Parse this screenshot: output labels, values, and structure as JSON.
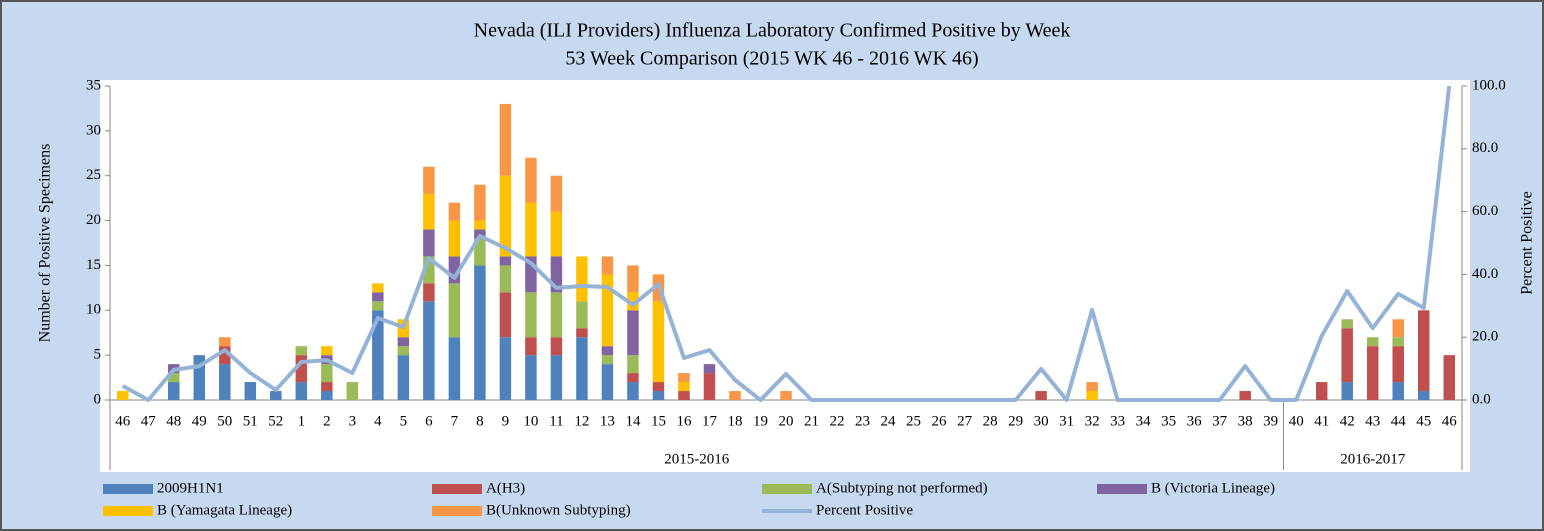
{
  "chart_data": {
    "type": "bar",
    "stacked": true,
    "title": "Nevada (ILI Providers) Influenza Laboratory Confirmed Positive by Week",
    "subtitle": "53 Week Comparison (2015 WK 46 - 2016 WK 46)",
    "y_label": "Number of Positive Specimens",
    "y2_label": "Percent Positive",
    "categories": [
      "46",
      "47",
      "48",
      "49",
      "50",
      "51",
      "52",
      "1",
      "2",
      "3",
      "4",
      "5",
      "6",
      "7",
      "8",
      "9",
      "10",
      "11",
      "12",
      "13",
      "14",
      "15",
      "16",
      "17",
      "18",
      "19",
      "20",
      "21",
      "22",
      "23",
      "24",
      "25",
      "26",
      "27",
      "28",
      "29",
      "30",
      "31",
      "32",
      "33",
      "34",
      "35",
      "36",
      "37",
      "38",
      "39",
      "40",
      "41",
      "42",
      "43",
      "44",
      "45",
      "46"
    ],
    "category_groups": [
      "2015-2016",
      "2015-2016",
      "2015-2016",
      "2015-2016",
      "2015-2016",
      "2015-2016",
      "2015-2016",
      "2015-2016",
      "2015-2016",
      "2015-2016",
      "2015-2016",
      "2015-2016",
      "2015-2016",
      "2015-2016",
      "2015-2016",
      "2015-2016",
      "2015-2016",
      "2015-2016",
      "2015-2016",
      "2015-2016",
      "2015-2016",
      "2015-2016",
      "2015-2016",
      "2015-2016",
      "2015-2016",
      "2015-2016",
      "2015-2016",
      "2015-2016",
      "2015-2016",
      "2015-2016",
      "2015-2016",
      "2015-2016",
      "2015-2016",
      "2015-2016",
      "2015-2016",
      "2015-2016",
      "2015-2016",
      "2015-2016",
      "2015-2016",
      "2015-2016",
      "2015-2016",
      "2015-2016",
      "2015-2016",
      "2015-2016",
      "2015-2016",
      "2015-2016",
      "2016-2017",
      "2016-2017",
      "2016-2017",
      "2016-2017",
      "2016-2017",
      "2016-2017",
      "2016-2017"
    ],
    "series": [
      {
        "name": "2009H1N1",
        "color": "#4f81bd",
        "values": [
          0,
          0,
          2,
          5,
          4,
          2,
          1,
          2,
          1,
          0,
          10,
          5,
          11,
          7,
          15,
          7,
          5,
          5,
          7,
          4,
          2,
          1,
          0,
          0,
          0,
          0,
          0,
          0,
          0,
          0,
          0,
          0,
          0,
          0,
          0,
          0,
          0,
          0,
          0,
          0,
          0,
          0,
          0,
          0,
          0,
          0,
          0,
          0,
          2,
          0,
          2,
          1,
          0
        ]
      },
      {
        "name": "A(H3)",
        "color": "#c0504d",
        "values": [
          0,
          0,
          0,
          0,
          2,
          0,
          0,
          3,
          1,
          0,
          0,
          0,
          2,
          0,
          0,
          5,
          2,
          2,
          1,
          0,
          1,
          1,
          1,
          3,
          0,
          0,
          0,
          0,
          0,
          0,
          0,
          0,
          0,
          0,
          0,
          0,
          1,
          0,
          0,
          0,
          0,
          0,
          0,
          0,
          1,
          0,
          0,
          2,
          6,
          6,
          4,
          9,
          5
        ]
      },
      {
        "name": "A(Subtyping not performed)",
        "color": "#9bbb59",
        "values": [
          0,
          0,
          1,
          0,
          0,
          0,
          0,
          1,
          2,
          2,
          1,
          1,
          3,
          6,
          3,
          3,
          5,
          5,
          3,
          1,
          2,
          0,
          0,
          0,
          0,
          0,
          0,
          0,
          0,
          0,
          0,
          0,
          0,
          0,
          0,
          0,
          0,
          0,
          0,
          0,
          0,
          0,
          0,
          0,
          0,
          0,
          0,
          0,
          1,
          1,
          1,
          0,
          0
        ]
      },
      {
        "name": "B (Victoria Lineage)",
        "color": "#8064a2",
        "values": [
          0,
          0,
          1,
          0,
          0,
          0,
          0,
          0,
          1,
          0,
          1,
          1,
          3,
          3,
          1,
          1,
          4,
          4,
          0,
          1,
          5,
          0,
          0,
          1,
          0,
          0,
          0,
          0,
          0,
          0,
          0,
          0,
          0,
          0,
          0,
          0,
          0,
          0,
          0,
          0,
          0,
          0,
          0,
          0,
          0,
          0,
          0,
          0,
          0,
          0,
          0,
          0,
          0
        ]
      },
      {
        "name": "B (Yamagata Lineage)",
        "color": "#ffc000",
        "values": [
          1,
          0,
          0,
          0,
          0,
          0,
          0,
          0,
          1,
          0,
          1,
          2,
          4,
          4,
          1,
          9,
          6,
          5,
          5,
          8,
          2,
          9,
          1,
          0,
          0,
          0,
          0,
          0,
          0,
          0,
          0,
          0,
          0,
          0,
          0,
          0,
          0,
          0,
          1,
          0,
          0,
          0,
          0,
          0,
          0,
          0,
          0,
          0,
          0,
          0,
          0,
          0,
          0
        ]
      },
      {
        "name": "B(Unknown Subtyping)",
        "color": "#f79646",
        "values": [
          0,
          0,
          0,
          0,
          1,
          0,
          0,
          0,
          0,
          0,
          0,
          0,
          3,
          2,
          4,
          8,
          5,
          4,
          0,
          2,
          3,
          3,
          1,
          0,
          1,
          0,
          1,
          0,
          0,
          0,
          0,
          0,
          0,
          0,
          0,
          0,
          0,
          0,
          1,
          0,
          0,
          0,
          0,
          0,
          0,
          0,
          0,
          0,
          0,
          0,
          2,
          0,
          0
        ]
      },
      {
        "name": "Percent Positive",
        "type": "line",
        "axis": "y2",
        "color": "#95b3d7",
        "values": [
          4.5,
          0,
          9.6,
          10.8,
          15.9,
          8.6,
          3.2,
          12.1,
          12.7,
          8.6,
          26.1,
          23.2,
          45.2,
          38.9,
          52.2,
          48.4,
          43.6,
          35.7,
          36.3,
          36.0,
          30.3,
          36.9,
          13.4,
          15.9,
          6.4,
          0,
          8.3,
          0,
          0,
          0,
          0,
          0,
          0,
          0,
          0,
          0,
          9.9,
          0,
          28.7,
          0,
          0,
          0,
          0,
          0,
          10.8,
          0,
          0,
          20.4,
          34.7,
          22.9,
          33.8,
          29.3,
          100
        ]
      }
    ],
    "ylim": [
      0,
      35
    ],
    "yticks": [
      0,
      5,
      10,
      15,
      20,
      25,
      30,
      35
    ],
    "y2lim": [
      0,
      100
    ],
    "y2ticks": [
      {
        "value": 0,
        "label": "0.0"
      },
      {
        "value": 20,
        "label": "20.0"
      },
      {
        "value": 40,
        "label": "40.0"
      },
      {
        "value": 60,
        "label": "60.0"
      },
      {
        "value": 80,
        "label": "80.0"
      },
      {
        "value": 100,
        "label": "100.0"
      }
    ],
    "grid": false,
    "legend": "bottom"
  }
}
